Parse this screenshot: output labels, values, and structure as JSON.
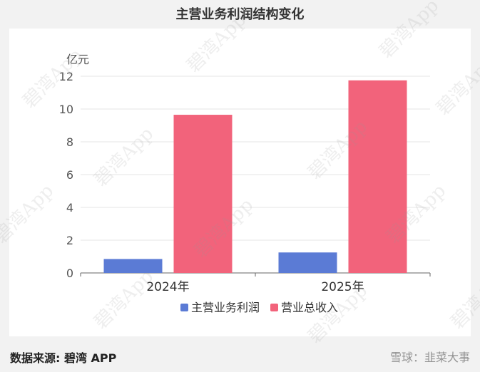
{
  "chart_data": {
    "type": "bar",
    "title": "主营业务利润结构变化",
    "ylabel": "亿元",
    "categories": [
      "2024年",
      "2025年"
    ],
    "ylim": [
      0,
      12
    ],
    "yticks": [
      0,
      2,
      4,
      6,
      8,
      10,
      12
    ],
    "grid": true,
    "legend_position": "bottom",
    "series": [
      {
        "name": "主营业务利润",
        "color": "#5b7bd5",
        "values": [
          0.85,
          1.25
        ]
      },
      {
        "name": "营业总收入",
        "color": "#f2637b",
        "values": [
          9.65,
          11.75
        ]
      }
    ]
  },
  "footer": {
    "source": "数据来源: 碧湾 APP",
    "brand": "雪球：韭菜大事"
  },
  "watermark": "碧湾App"
}
